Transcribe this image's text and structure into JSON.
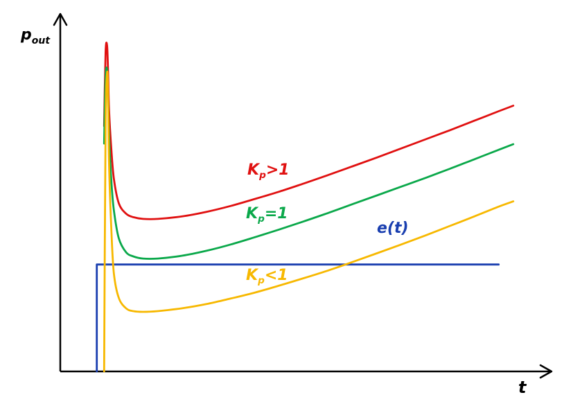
{
  "chart_data": {
    "type": "line",
    "title": "",
    "xlabel": "t",
    "ylabel": {
      "main": "p",
      "sub": "out"
    },
    "xlim": [
      0,
      10
    ],
    "ylim": [
      0,
      10
    ],
    "grid": false,
    "legend": "inline",
    "series": [
      {
        "name": "K_p>1",
        "label_parts": {
          "main": "K",
          "sub": "p",
          "rest": ">1"
        },
        "color": "#e01010",
        "x": [
          0.9,
          0.93,
          0.96,
          0.98,
          1.0,
          1.05,
          1.1,
          1.2,
          1.35,
          1.5,
          1.7,
          2.0,
          2.5,
          3.0,
          3.5,
          4.0,
          4.5,
          5.0,
          5.5,
          6.0,
          6.5,
          7.0,
          7.5,
          8.0,
          8.5,
          9.0,
          9.3
        ],
        "y": [
          7.0,
          9.1,
          9.3,
          8.6,
          7.5,
          6.3,
          5.5,
          4.8,
          4.5,
          4.4,
          4.35,
          4.35,
          4.42,
          4.55,
          4.72,
          4.92,
          5.13,
          5.36,
          5.6,
          5.85,
          6.1,
          6.36,
          6.62,
          6.88,
          7.15,
          7.42,
          7.58
        ]
      },
      {
        "name": "K_p=1",
        "label_parts": {
          "main": "K",
          "sub": "p",
          "rest": "=1"
        },
        "color": "#0aa84a",
        "x": [
          0.9,
          0.93,
          0.96,
          0.98,
          1.0,
          1.05,
          1.1,
          1.2,
          1.35,
          1.5,
          1.7,
          2.0,
          2.5,
          3.0,
          3.5,
          4.0,
          4.5,
          5.0,
          5.5,
          6.0,
          6.5,
          7.0,
          7.5,
          8.0,
          8.5,
          9.0,
          9.3
        ],
        "y": [
          6.5,
          8.4,
          8.6,
          7.9,
          6.8,
          5.4,
          4.6,
          3.8,
          3.4,
          3.28,
          3.22,
          3.22,
          3.3,
          3.44,
          3.62,
          3.83,
          4.05,
          4.28,
          4.52,
          4.77,
          5.02,
          5.27,
          5.52,
          5.78,
          6.05,
          6.32,
          6.48
        ]
      },
      {
        "name": "K_p<1",
        "label_parts": {
          "main": "K",
          "sub": "p",
          "rest": "<1"
        },
        "color": "#f7b800",
        "x": [
          0.9,
          0.93,
          0.96,
          0.98,
          1.0,
          1.05,
          1.1,
          1.2,
          1.35,
          1.5,
          1.7,
          2.0,
          2.5,
          3.0,
          3.5,
          4.0,
          4.5,
          5.0,
          5.5,
          6.0,
          6.5,
          7.0,
          7.5,
          8.0,
          8.5,
          9.0,
          9.3
        ],
        "y": [
          0.0,
          7.0,
          8.5,
          8.0,
          6.0,
          4.0,
          2.8,
          2.1,
          1.8,
          1.72,
          1.7,
          1.72,
          1.8,
          1.92,
          2.08,
          2.25,
          2.45,
          2.66,
          2.88,
          3.12,
          3.37,
          3.62,
          3.88,
          4.15,
          4.42,
          4.7,
          4.85
        ]
      },
      {
        "name": "e(t)",
        "label_parts": {
          "main": "e(t)",
          "sub": "",
          "rest": ""
        },
        "color": "#1a3fb0",
        "x": [
          0.75,
          0.75,
          0.8,
          9.0
        ],
        "y": [
          0.0,
          3.05,
          3.05,
          3.05
        ]
      }
    ]
  }
}
